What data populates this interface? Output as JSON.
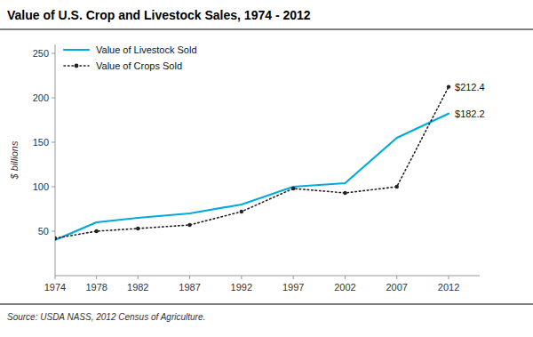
{
  "chart_data": {
    "type": "line",
    "title": "Value of U.S. Crop and Livestock Sales, 1974 - 2012",
    "y_label": "$ billions",
    "source": "Source: USDA NASS, 2012 Census of Agriculture.",
    "x": [
      1974,
      1978,
      1982,
      1987,
      1992,
      1997,
      2002,
      2007,
      2012
    ],
    "xlim": [
      1974,
      2015
    ],
    "xticks": [
      1974,
      1978,
      1982,
      1987,
      1992,
      1997,
      2002,
      2007,
      2012
    ],
    "ylim": [
      0,
      260
    ],
    "yticks": [
      50,
      100,
      150,
      200,
      250
    ],
    "grid": false,
    "legend": "upper-left",
    "series": [
      {
        "name": "Value of Livestock Sold",
        "color": "#00AADD",
        "line_style": "solid",
        "values": [
          40,
          60,
          65,
          70,
          80,
          100,
          104,
          155,
          182.2
        ]
      },
      {
        "name": "Value of Crops Sold",
        "color": "#222222",
        "line_style": "dotted",
        "marker": "circle",
        "values": [
          42,
          50,
          53,
          57,
          72,
          98,
          93,
          100,
          212.4
        ]
      }
    ],
    "annotations": [
      {
        "text": "$212.4",
        "x": 2012,
        "y": 212.4
      },
      {
        "text": "$182.2",
        "x": 2012,
        "y": 182.2
      }
    ]
  }
}
